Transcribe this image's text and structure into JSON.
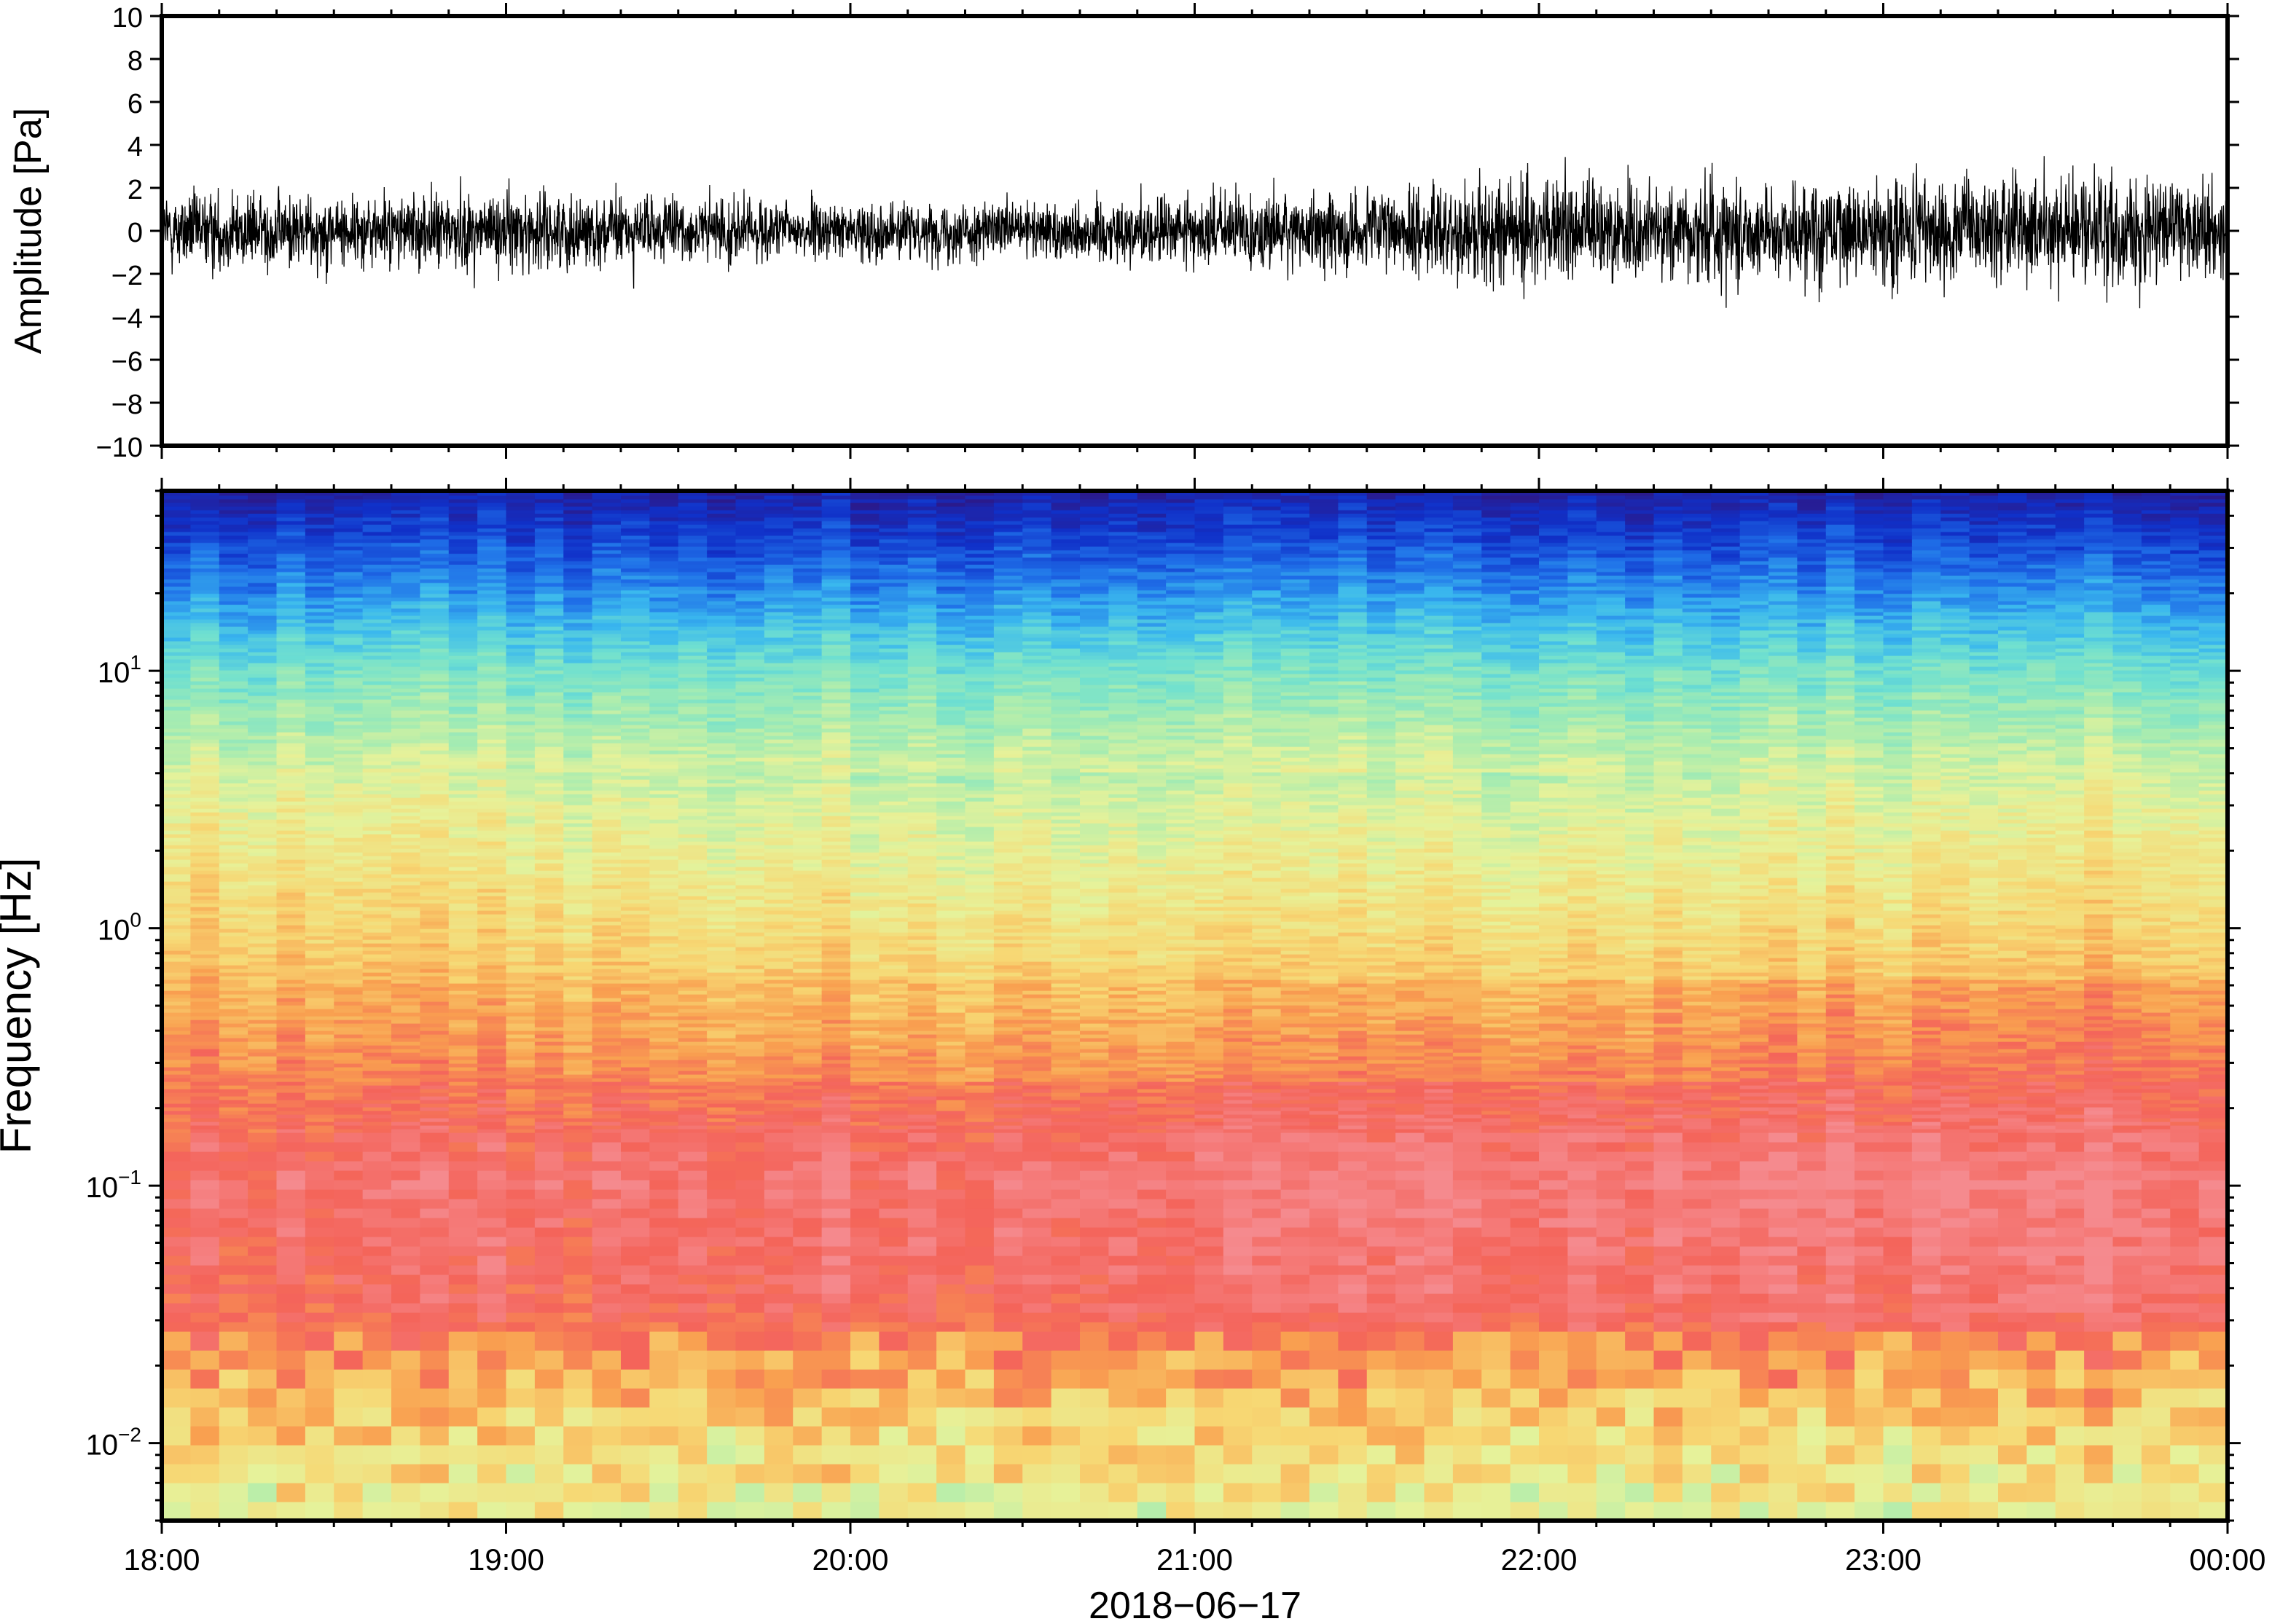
{
  "chart_data": [
    {
      "type": "line",
      "ylabel": "Amplitude [Pa]",
      "ylim": [
        -10,
        10
      ],
      "yticks": [
        10,
        8,
        6,
        4,
        2,
        0,
        -2,
        -4,
        -6,
        -8,
        -10
      ],
      "ytick_labels": [
        "10",
        "8",
        "6",
        "4",
        "2",
        "0",
        "−2",
        "−4",
        "−6",
        "−8",
        "−10"
      ],
      "xlim": [
        "2018-06-17 18:00",
        "2018-06-18 00:00"
      ],
      "series": [
        {
          "color": "#000000",
          "envelope_hours": [
            18.0,
            18.5,
            19.0,
            19.5,
            20.0,
            20.5,
            21.0,
            21.5,
            22.0,
            22.5,
            23.0,
            23.5,
            24.0
          ],
          "envelope_pa": [
            1.6,
            1.5,
            1.6,
            1.4,
            1.1,
            1.2,
            1.5,
            1.7,
            2.1,
            2.2,
            2.1,
            2.3,
            2.2
          ],
          "min": -3.6,
          "max": 3.9
        }
      ]
    },
    {
      "type": "heatmap",
      "ylabel": "Frequency [Hz]",
      "yscale": "log",
      "ylim": [
        0.005,
        50
      ],
      "yticks": [
        0.01,
        0.1,
        1,
        10
      ],
      "ytick_labels": [
        {
          "base": "10",
          "exp": "−2"
        },
        {
          "base": "10",
          "exp": "−1"
        },
        {
          "base": "10",
          "exp": "0"
        },
        {
          "base": "10",
          "exp": "1"
        }
      ],
      "xlim": [
        "2018-06-17 18:00",
        "2018-06-18 00:00"
      ],
      "xticks": [
        "18:00",
        "19:00",
        "20:00",
        "21:00",
        "22:00",
        "23:00",
        "00:00"
      ],
      "xlabel": "2018−06−17",
      "colormap": [
        "#2a1a8c",
        "#1030c8",
        "#1f6fe8",
        "#3ab8ee",
        "#6fe0d0",
        "#a8ecb0",
        "#e6f29a",
        "#f7d773",
        "#f9a050",
        "#f4645a",
        "#f58a8e"
      ]
    }
  ]
}
